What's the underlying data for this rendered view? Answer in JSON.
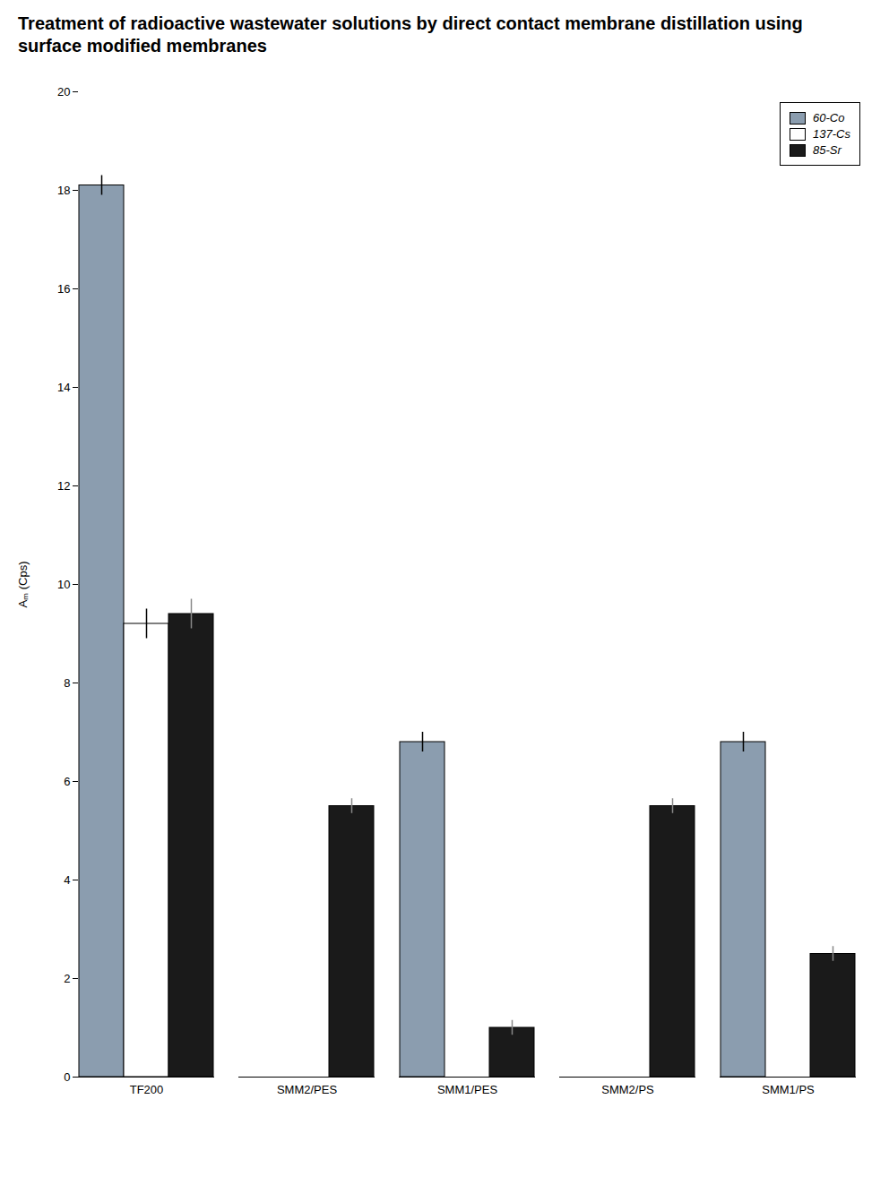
{
  "chart_data": {
    "type": "bar",
    "title": "Treatment of radioactive wastewater solutions by direct contact membrane distillation using surface modified membranes",
    "y_label": "Aₘ (Cps)",
    "categories": [
      "TF200",
      "SMM2/PES",
      "SMM1/PES",
      "SMM2/PS",
      "SMM1/PS"
    ],
    "series": [
      {
        "name": "60-Co",
        "color": "#8B9DAF",
        "values": [
          18.1,
          0.0,
          6.8,
          0.0,
          6.8
        ],
        "errors": [
          0.2,
          0.0,
          0.2,
          0.0,
          0.2
        ]
      },
      {
        "name": "137-Cs",
        "color": "#FFFFFF",
        "values": [
          9.2,
          0.0,
          0.0,
          0.0,
          0.0
        ],
        "errors": [
          0.3,
          0.0,
          0.0,
          0.0,
          0.0
        ]
      },
      {
        "name": "85-Sr",
        "color": "#1a1a1a",
        "values": [
          9.4,
          5.5,
          1.0,
          5.5,
          2.5
        ],
        "errors": [
          0.3,
          0.15,
          0.15,
          0.15,
          0.15
        ]
      }
    ],
    "ylim": [
      0,
      20
    ],
    "yticks": [
      0,
      2,
      4,
      6,
      8,
      10,
      12,
      14,
      16,
      18,
      20
    ],
    "grid": false,
    "legend": "upper right"
  }
}
